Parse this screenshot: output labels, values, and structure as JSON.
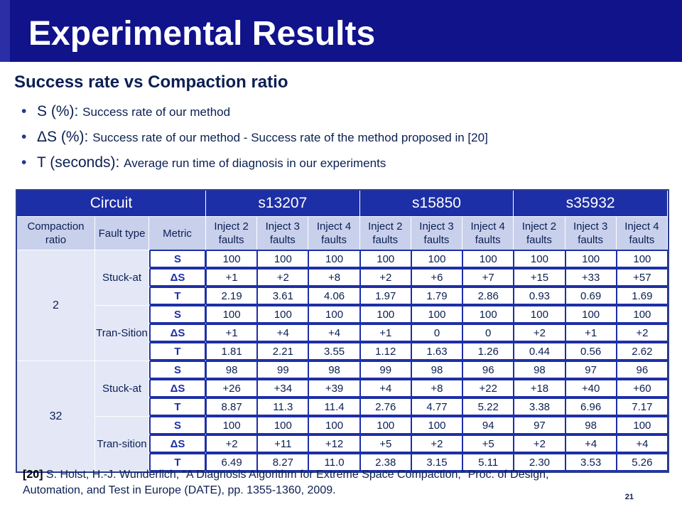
{
  "title": "Experimental Results",
  "subtitle": "Success rate vs Compaction ratio",
  "bullets": [
    {
      "term": "S (%): ",
      "desc": "Success rate of our method"
    },
    {
      "term": "ΔS (%): ",
      "desc": "Success rate of our method - Success rate of the method proposed in [20]"
    },
    {
      "term": "T (seconds): ",
      "desc": "Average run time of diagnosis in our experiments"
    }
  ],
  "table": {
    "header_circuit": "Circuit",
    "circuits": [
      "s13207",
      "s15850",
      "s35932"
    ],
    "col_compaction": "Compaction ratio",
    "col_fault_type": "Fault type",
    "col_metric": "Metric",
    "inject_headers": [
      "Inject 2 faults",
      "Inject 3 faults",
      "Inject 4 faults",
      "Inject 2 faults",
      "Inject 3 faults",
      "Inject 4 faults",
      "Inject 2 faults",
      "Inject 3 faults",
      "Inject 4 faults"
    ],
    "groups": [
      {
        "ratio": "2",
        "types": [
          {
            "type": "Stuck-at",
            "rows": [
              {
                "metric": "S",
                "values": [
                  "100",
                  "100",
                  "100",
                  "100",
                  "100",
                  "100",
                  "100",
                  "100",
                  "100"
                ]
              },
              {
                "metric": "ΔS",
                "values": [
                  "+1",
                  "+2",
                  "+8",
                  "+2",
                  "+6",
                  "+7",
                  "+15",
                  "+33",
                  "+57"
                ]
              },
              {
                "metric": "T",
                "values": [
                  "2.19",
                  "3.61",
                  "4.06",
                  "1.97",
                  "1.79",
                  "2.86",
                  "0.93",
                  "0.69",
                  "1.69"
                ]
              }
            ]
          },
          {
            "type": "Tran-Sition",
            "rows": [
              {
                "metric": "S",
                "values": [
                  "100",
                  "100",
                  "100",
                  "100",
                  "100",
                  "100",
                  "100",
                  "100",
                  "100"
                ]
              },
              {
                "metric": "ΔS",
                "values": [
                  "+1",
                  "+4",
                  "+4",
                  "+1",
                  "0",
                  "0",
                  "+2",
                  "+1",
                  "+2"
                ]
              },
              {
                "metric": "T",
                "values": [
                  "1.81",
                  "2.21",
                  "3.55",
                  "1.12",
                  "1.63",
                  "1.26",
                  "0.44",
                  "0.56",
                  "2.62"
                ]
              }
            ]
          }
        ]
      },
      {
        "ratio": "32",
        "types": [
          {
            "type": "Stuck-at",
            "rows": [
              {
                "metric": "S",
                "values": [
                  "98",
                  "99",
                  "98",
                  "99",
                  "98",
                  "96",
                  "98",
                  "97",
                  "96"
                ]
              },
              {
                "metric": "ΔS",
                "values": [
                  "+26",
                  "+34",
                  "+39",
                  "+4",
                  "+8",
                  "+22",
                  "+18",
                  "+40",
                  "+60"
                ]
              },
              {
                "metric": "T",
                "values": [
                  "8.87",
                  "11.3",
                  "11.4",
                  "2.76",
                  "4.77",
                  "5.22",
                  "3.38",
                  "6.96",
                  "7.17"
                ]
              }
            ]
          },
          {
            "type": "Tran-sition",
            "rows": [
              {
                "metric": "S",
                "values": [
                  "100",
                  "100",
                  "100",
                  "100",
                  "100",
                  "94",
                  "97",
                  "98",
                  "100"
                ]
              },
              {
                "metric": "ΔS",
                "values": [
                  "+2",
                  "+11",
                  "+12",
                  "+5",
                  "+2",
                  "+5",
                  "+2",
                  "+4",
                  "+4"
                ]
              },
              {
                "metric": "T",
                "values": [
                  "6.49",
                  "8.27",
                  "11.0",
                  "2.38",
                  "3.15",
                  "5.11",
                  "2.30",
                  "3.53",
                  "5.26"
                ]
              }
            ]
          }
        ]
      }
    ]
  },
  "footnote": {
    "ref": "[20]",
    "text": " S. Holst, H.-J. Wunderlich, “A Diagnosis Algorithm for Extreme Space Compaction,” Proc. of Design, Automation, and Test in Europe (DATE), pp. 1355-1360, 2009."
  },
  "page_number": "21"
}
